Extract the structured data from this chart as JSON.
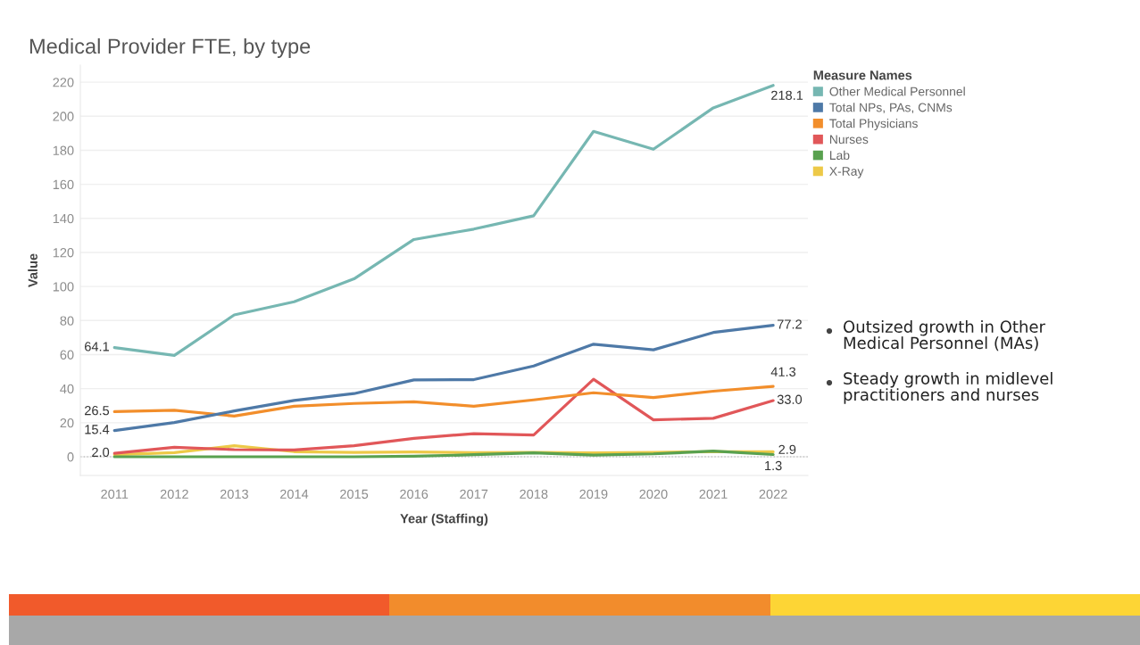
{
  "chart_data": {
    "type": "line",
    "title": "Medical Provider FTE, by type",
    "xlabel": "Year (Staffing)",
    "ylabel": "Value",
    "legend_title": "Measure Names",
    "categories": [
      "2011",
      "2012",
      "2013",
      "2014",
      "2015",
      "2016",
      "2017",
      "2018",
      "2019",
      "2020",
      "2021",
      "2022"
    ],
    "series": [
      {
        "name": "Other Medical Personnel",
        "color": "#76b7b2",
        "values": [
          64.1,
          59.5,
          83.3,
          91.0,
          104.5,
          127.6,
          133.7,
          141.5,
          191.1,
          180.6,
          204.9,
          218.1
        ],
        "value_labels": [
          "64.1",
          null,
          null,
          null,
          null,
          null,
          null,
          null,
          null,
          null,
          null,
          "218.1"
        ]
      },
      {
        "name": "Total NPs, PAs, CNMs",
        "color": "#4e79a7",
        "values": [
          15.4,
          20.1,
          26.9,
          33.1,
          37.1,
          45.1,
          45.3,
          53.3,
          66.1,
          62.8,
          73.0,
          77.2
        ],
        "value_labels": [
          "15.4",
          null,
          null,
          null,
          null,
          null,
          null,
          null,
          null,
          null,
          null,
          "77.2"
        ]
      },
      {
        "name": "Total Physicians",
        "color": "#f28e2b",
        "values": [
          26.5,
          27.3,
          23.9,
          29.7,
          31.3,
          32.3,
          29.7,
          33.4,
          37.6,
          34.8,
          38.5,
          41.3
        ],
        "value_labels": [
          "26.5",
          null,
          null,
          null,
          null,
          null,
          null,
          null,
          null,
          null,
          null,
          "41.3"
        ]
      },
      {
        "name": "Nurses",
        "color": "#e15759",
        "values": [
          2.0,
          5.6,
          4.2,
          4.0,
          6.5,
          10.8,
          13.6,
          12.8,
          45.5,
          21.7,
          22.6,
          33.0
        ],
        "value_labels": [
          "2.0",
          null,
          null,
          null,
          null,
          null,
          null,
          null,
          null,
          null,
          null,
          "33.0"
        ]
      },
      {
        "name": "Lab",
        "color": "#59a14f",
        "values": [
          0.0,
          0.0,
          0.0,
          0.0,
          0.0,
          0.3,
          1.2,
          2.3,
          1.0,
          1.7,
          3.3,
          1.3
        ],
        "value_labels": [
          null,
          null,
          null,
          null,
          null,
          null,
          null,
          null,
          null,
          null,
          null,
          "1.3"
        ]
      },
      {
        "name": "X-Ray",
        "color": "#edc948",
        "values": [
          1.2,
          2.4,
          6.5,
          3.0,
          2.6,
          2.8,
          2.4,
          2.6,
          2.3,
          2.6,
          3.0,
          2.9
        ],
        "value_labels": [
          null,
          null,
          null,
          null,
          null,
          null,
          null,
          null,
          null,
          null,
          null,
          "2.9"
        ]
      }
    ],
    "ylim": [
      -11,
      230
    ],
    "yticks": [
      0,
      20,
      40,
      60,
      80,
      100,
      120,
      140,
      160,
      180,
      200,
      220
    ],
    "grid": "y",
    "legend": "top right",
    "line_style": "solid",
    "ref_lines": [
      {
        "axis": "y",
        "value": 0,
        "line_style": "dotted",
        "color": "#c4c4c4"
      }
    ],
    "annotations": [
      "Outsized growth in Other\nMedical Personnel (MAs)",
      "Steady growth in midlevel\npractitioners and nurses"
    ]
  }
}
